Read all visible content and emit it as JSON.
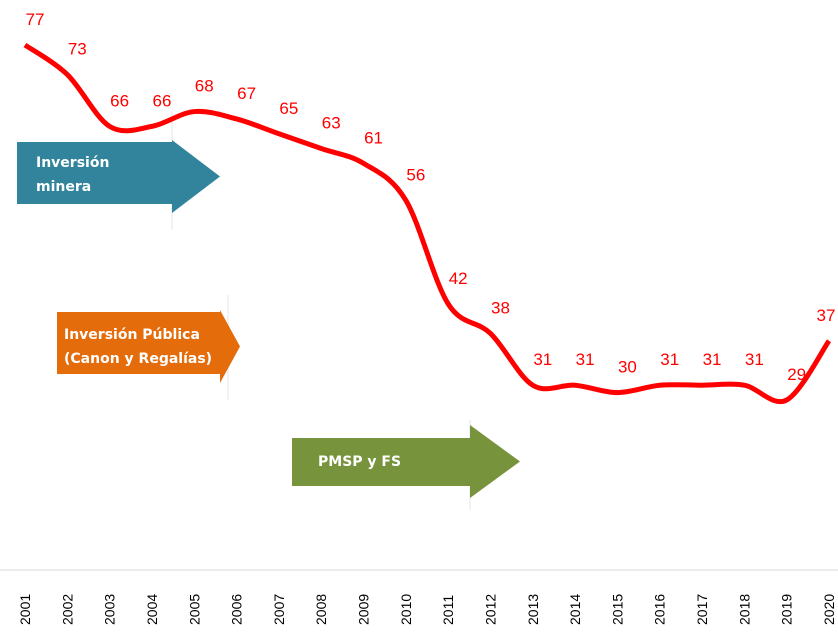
{
  "chart_data": {
    "type": "line",
    "categories": [
      "2001",
      "2002",
      "2003",
      "2004",
      "2005",
      "2006",
      "2007",
      "2008",
      "2009",
      "2010",
      "2011",
      "2012",
      "2013",
      "2014",
      "2015",
      "2016",
      "2017",
      "2018",
      "2019",
      "2020"
    ],
    "series": [
      {
        "name": null,
        "color": "#ff0000",
        "values": [
          77,
          73,
          66,
          66,
          68,
          67,
          65,
          63,
          61,
          56,
          42,
          38,
          31,
          31,
          30,
          31,
          31,
          31,
          29,
          37
        ]
      }
    ],
    "annotations": [
      {
        "lines": [
          "Inversión",
          "minera"
        ],
        "color": "#31849b"
      },
      {
        "lines": [
          "Inversión Pública",
          "(Canon y Regalías)"
        ],
        "color": "#e46c0a"
      },
      {
        "lines": [
          "PMSP y FS"
        ],
        "color": "#77933c"
      }
    ]
  }
}
